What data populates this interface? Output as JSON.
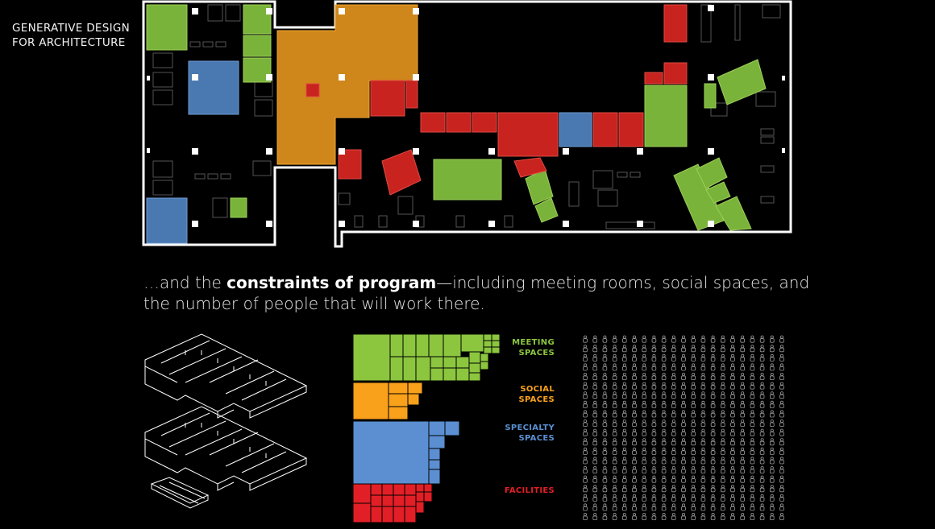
{
  "deck": {
    "title_line1": "GENERATIVE DESIGN",
    "title_line2": "FOR ARCHITECTURE"
  },
  "caption": {
    "lead": "…and the ",
    "bold": "constraints of program",
    "rest_line1": "—including meeting rooms, social spaces, and",
    "line2": "the number of people that will work there."
  },
  "program": {
    "categories": [
      {
        "line1": "MEETING",
        "line2": "SPACES",
        "color": "#8cc63f"
      },
      {
        "line1": "SOCIAL",
        "line2": "SPACES",
        "color": "#f9a11b"
      },
      {
        "line1": "SPECIALTY",
        "line2": "SPACES",
        "color": "#5b8fd1"
      },
      {
        "line1": "FACILITIES",
        "line2": "",
        "color": "#e21f26"
      }
    ]
  },
  "palette": {
    "meeting": "#7ab33a",
    "social": "#cf861a",
    "specialty": "#4a78b0",
    "facilities": "#c8231f",
    "outline": "#ffffff"
  },
  "people": {
    "rows": 20,
    "cols": 21
  }
}
